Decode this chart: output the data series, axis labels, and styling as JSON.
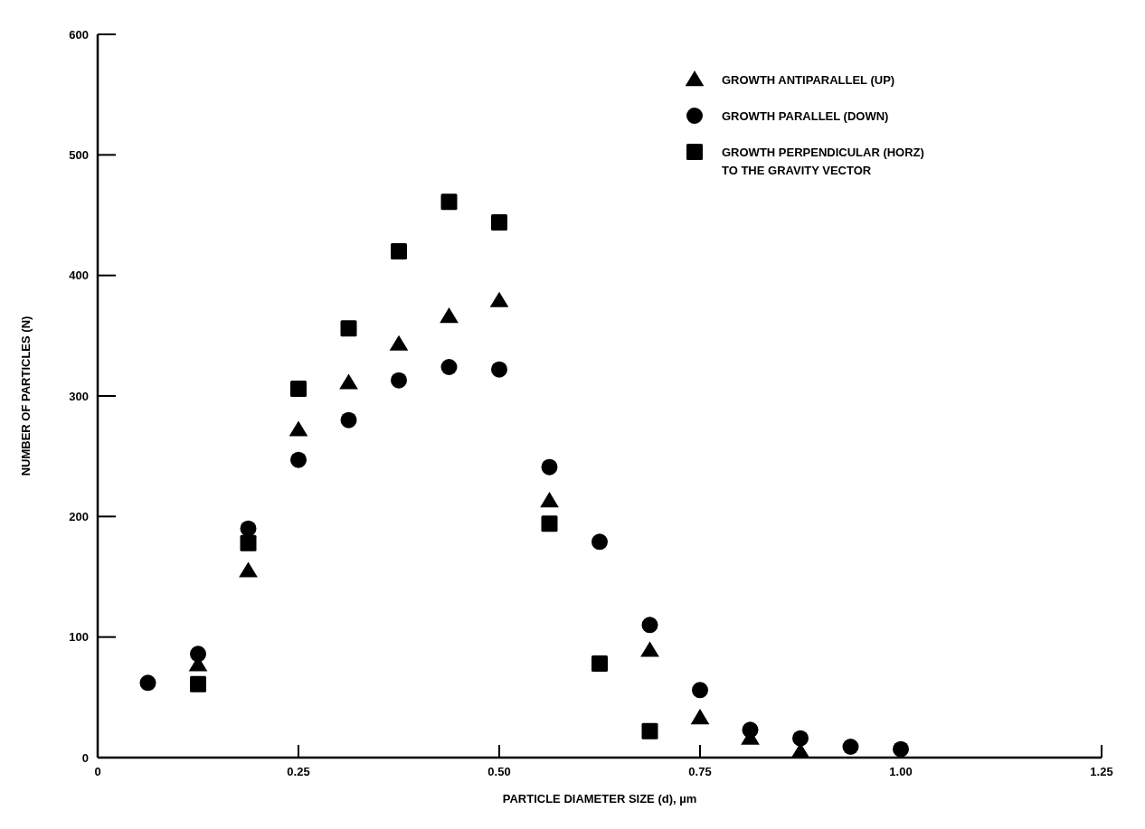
{
  "chart_data": {
    "type": "scatter",
    "xlabel": "PARTICLE DIAMETER SIZE (d), µm",
    "ylabel": "NUMBER OF PARTICLES (N)",
    "xlim": [
      0,
      1.25
    ],
    "xticks": [
      0,
      {
        "value": 0.25,
        "label": "0.25"
      },
      {
        "value": 0.5,
        "label": "0.50"
      },
      {
        "value": 0.75,
        "label": "0.75"
      },
      {
        "value": 1,
        "label": "1.00"
      },
      {
        "value": 1.25,
        "label": "1.25"
      }
    ],
    "ylim": [
      0,
      600
    ],
    "yticks": [
      0,
      100,
      200,
      300,
      400,
      500,
      600
    ],
    "grid": false,
    "legend": "top right",
    "series": [
      {
        "name": "GROWTH ANTIPARALLEL (UP)",
        "color": "#000000",
        "marker": "triangle",
        "x": [
          0.125,
          0.1875,
          0.25,
          0.3125,
          0.375,
          0.4375,
          0.5,
          0.5625,
          0.6875,
          0.75,
          0.8125,
          0.875
        ],
        "values": [
          77,
          155,
          272,
          311,
          343,
          366,
          379,
          213,
          89,
          33,
          16,
          5
        ]
      },
      {
        "name": "GROWTH PARALLEL (DOWN)",
        "color": "#000000",
        "marker": "circle",
        "x": [
          0.0625,
          0.125,
          0.1875,
          0.25,
          0.3125,
          0.375,
          0.4375,
          0.5,
          0.5625,
          0.625,
          0.6875,
          0.75,
          0.8125,
          0.875,
          0.9375,
          1
        ],
        "values": [
          62,
          86,
          190,
          247,
          280,
          313,
          324,
          322,
          241,
          179,
          110,
          56,
          23,
          16,
          9,
          7
        ]
      },
      {
        "name": "GROWTH PERPENDICULAR (HORZ)\nTO THE GRAVITY VECTOR",
        "color": "#000000",
        "marker": "square",
        "x": [
          0.125,
          0.1875,
          0.25,
          0.3125,
          0.375,
          0.4375,
          0.5,
          0.5625,
          0.625,
          0.6875
        ],
        "values": [
          61,
          178,
          306,
          356,
          420,
          461,
          444,
          194,
          78,
          22
        ]
      }
    ]
  }
}
